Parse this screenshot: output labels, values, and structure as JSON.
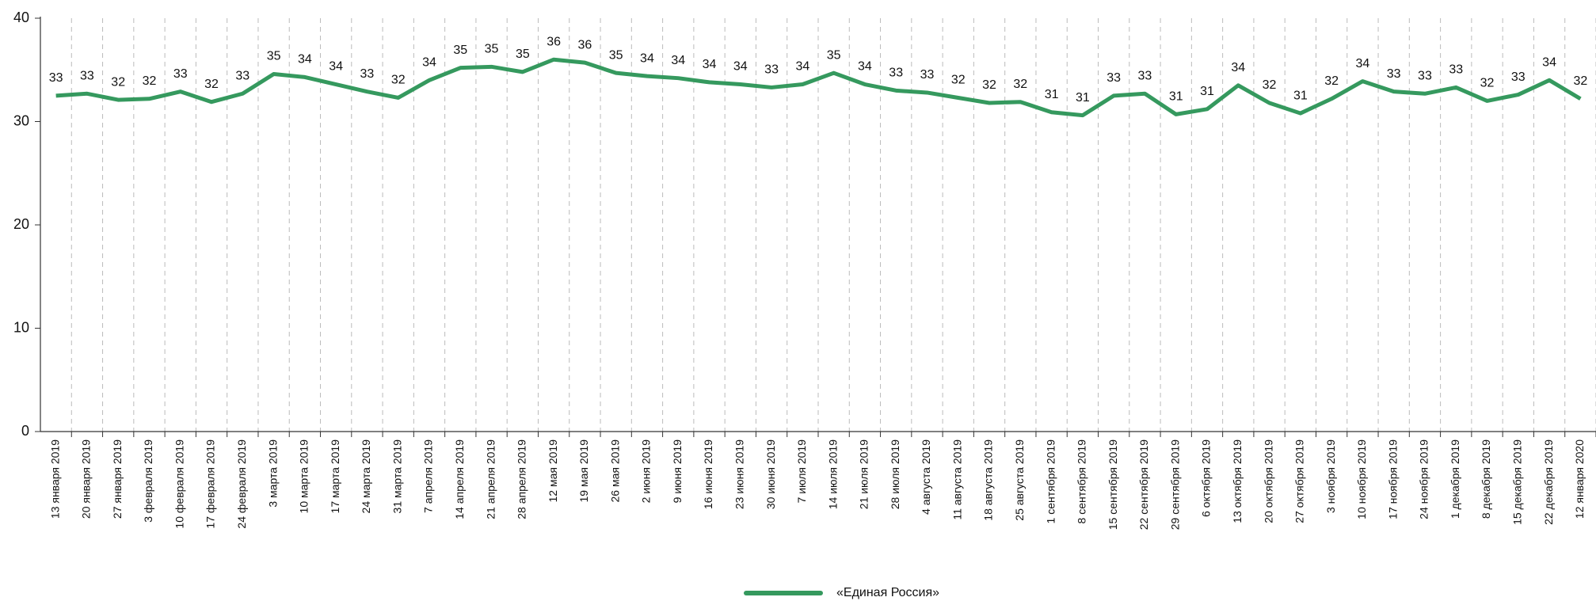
{
  "chart_data": {
    "type": "line",
    "categories": [
      "13 января 2019",
      "20 января 2019",
      "27 января 2019",
      "3 февраля 2019",
      "10 февраля 2019",
      "17 февраля 2019",
      "24 февраля 2019",
      "3 марта 2019",
      "10 марта 2019",
      "17 марта 2019",
      "24 марта 2019",
      "31 марта 2019",
      "7 апреля 2019",
      "14 апреля 2019",
      "21 апреля 2019",
      "28 апреля 2019",
      "12 мая 2019",
      "19 мая 2019",
      "26 мая 2019",
      "2 июня 2019",
      "9 июня 2019",
      "16 июня 2019",
      "23 июня 2019",
      "30 июня 2019",
      "7 июля 2019",
      "14 июля 2019",
      "21 июля 2019",
      "28 июля 2019",
      "4 августа 2019",
      "11 августа 2019",
      "18 августа 2019",
      "25 августа 2019",
      "1 сентября 2019",
      "8 сентября 2019",
      "15 сентября 2019",
      "22 сентября 2019",
      "29 сентября 2019",
      "6 октября 2019",
      "13 октября 2019",
      "20 октября 2019",
      "27 октября 2019",
      "3 ноября 2019",
      "10 ноября 2019",
      "17 ноября 2019",
      "24 ноября 2019",
      "1 декабря 2019",
      "8 декабря 2019",
      "15 декабря 2019",
      "22 декабря 2019",
      "12 января 2020"
    ],
    "series": [
      {
        "name": "«Единая Россия»",
        "color": "#35995e",
        "values": [
          32.5,
          32.7,
          32.1,
          32.2,
          32.9,
          31.9,
          32.7,
          34.6,
          34.3,
          33.6,
          32.9,
          32.3,
          34.0,
          35.2,
          35.3,
          34.8,
          36.0,
          35.7,
          34.7,
          34.4,
          34.2,
          33.8,
          33.6,
          33.3,
          33.6,
          34.7,
          33.6,
          33.0,
          32.8,
          32.3,
          31.8,
          31.9,
          30.9,
          30.6,
          32.5,
          32.7,
          30.7,
          31.2,
          33.5,
          31.8,
          30.8,
          32.2,
          33.9,
          32.9,
          32.7,
          33.3,
          32.0,
          32.6,
          34.0,
          32.2
        ],
        "value_labels": [
          "33",
          "33",
          "32",
          "32",
          "33",
          "32",
          "33",
          "35",
          "34",
          "34",
          "33",
          "32",
          "34",
          "35",
          "35",
          "35",
          "36",
          "36",
          "35",
          "34",
          "34",
          "34",
          "34",
          "33",
          "34",
          "35",
          "34",
          "33",
          "33",
          "32",
          "32",
          "32",
          "31",
          "31",
          "33",
          "33",
          "31",
          "31",
          "34",
          "32",
          "31",
          "32",
          "34",
          "33",
          "33",
          "33",
          "32",
          "33",
          "34",
          "32"
        ]
      }
    ],
    "ylim": [
      0,
      40
    ],
    "yticks": [
      0,
      10,
      20,
      30,
      40
    ],
    "category_separators": true,
    "legend": "bottom"
  }
}
